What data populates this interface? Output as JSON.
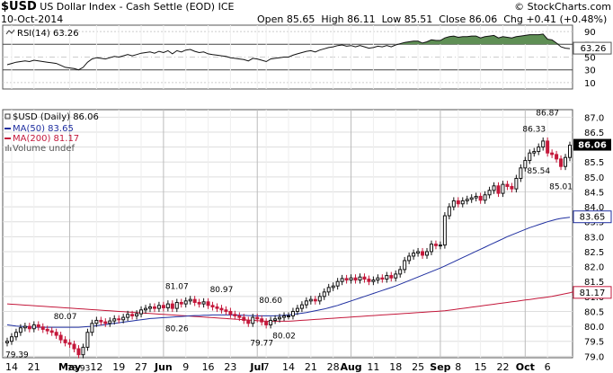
{
  "header": {
    "symbol": "$USD",
    "name": "US Dollar Index - Cash Settle (EOD)",
    "exchange": "ICE",
    "date": "10-Oct-2014",
    "ohlc": "Open 85.65  High 86.11  Low 85.51  Close 86.06  Chg +0.41 (+0.48%)",
    "watermark": "© StockCharts.com"
  },
  "rsi_panel": {
    "label": "RSI(14) 63.26",
    "current_badge": "63.26",
    "ticks": [
      "90",
      "70",
      "50",
      "30",
      "10"
    ],
    "upper_band": 70,
    "lower_band": 30,
    "mid_line": 50
  },
  "price_panel": {
    "label": "$USD (Daily) 86.06",
    "legend": [
      {
        "text": "MA(50) 83.65",
        "color": "#1f2fa0"
      },
      {
        "text": "MA(200) 81.17",
        "color": "#c4183b"
      },
      {
        "text": "Volume undef",
        "color": "#888888"
      }
    ],
    "close_badge": "86.06",
    "ma50_badge": "83.65",
    "ma200_badge": "81.17",
    "y_ticks": [
      "87.0",
      "86.5",
      "86.0",
      "85.5",
      "85.0",
      "84.5",
      "84.0",
      "83.5",
      "83.0",
      "82.5",
      "82.0",
      "81.5",
      "81.0",
      "80.5",
      "80.0",
      "79.5",
      "79.0"
    ],
    "x_ticks": [
      "14",
      "21",
      "May",
      "12",
      "19",
      "27",
      "Jun",
      "9",
      "16",
      "23",
      "Jul",
      "7",
      "14",
      "21",
      "28",
      "Aug",
      "11",
      "18",
      "25",
      "Sep",
      "8",
      "15",
      "22",
      "Oct",
      "6"
    ],
    "annotations": [
      "80.07",
      "78.93",
      "81.07",
      "80.26",
      "80.97",
      "80.60",
      "79.77",
      "80.02",
      "86.33",
      "86.87",
      "85.54",
      "85.01",
      "79.39"
    ]
  },
  "colors": {
    "up": "#111111",
    "down": "#c4183b",
    "ma50": "#1f2fa0",
    "ma200": "#c4183b",
    "rsi_fill": "#5f8f55",
    "badge_close": "#000000"
  },
  "chart_data": {
    "type": "candlestick",
    "title": "$USD (Daily) 86.06",
    "ylim": [
      79.0,
      87.2
    ],
    "rsi_ylim": [
      0,
      100
    ],
    "x": [
      "Apr 11",
      "Apr 14",
      "Apr 15",
      "Apr 16",
      "Apr 17",
      "Apr 21",
      "Apr 22",
      "Apr 23",
      "Apr 24",
      "Apr 25",
      "Apr 28",
      "Apr 29",
      "Apr 30",
      "May 1",
      "May 2",
      "May 5",
      "May 6",
      "May 7",
      "May 8",
      "May 9",
      "May 12",
      "May 13",
      "May 14",
      "May 15",
      "May 16",
      "May 19",
      "May 20",
      "May 21",
      "May 22",
      "May 23",
      "May 27",
      "May 28",
      "May 29",
      "May 30",
      "Jun 2",
      "Jun 3",
      "Jun 4",
      "Jun 5",
      "Jun 6",
      "Jun 9",
      "Jun 10",
      "Jun 11",
      "Jun 12",
      "Jun 13",
      "Jun 16",
      "Jun 17",
      "Jun 18",
      "Jun 19",
      "Jun 20",
      "Jun 23",
      "Jun 24",
      "Jun 25",
      "Jun 26",
      "Jun 27",
      "Jun 30",
      "Jul 1",
      "Jul 2",
      "Jul 3",
      "Jul 7",
      "Jul 8",
      "Jul 9",
      "Jul 10",
      "Jul 11",
      "Jul 14",
      "Jul 15",
      "Jul 16",
      "Jul 17",
      "Jul 18",
      "Jul 21",
      "Jul 22",
      "Jul 23",
      "Jul 24",
      "Jul 25",
      "Jul 28",
      "Jul 29",
      "Jul 30",
      "Jul 31",
      "Aug 1",
      "Aug 4",
      "Aug 5",
      "Aug 6",
      "Aug 7",
      "Aug 8",
      "Aug 11",
      "Aug 12",
      "Aug 13",
      "Aug 14",
      "Aug 15",
      "Aug 18",
      "Aug 19",
      "Aug 20",
      "Aug 21",
      "Aug 22",
      "Aug 25",
      "Aug 26",
      "Aug 27",
      "Aug 28",
      "Aug 29",
      "Sep 2",
      "Sep 3",
      "Sep 4",
      "Sep 5",
      "Sep 8",
      "Sep 9",
      "Sep 10",
      "Sep 11",
      "Sep 12",
      "Sep 15",
      "Sep 16",
      "Sep 17",
      "Sep 18",
      "Sep 19",
      "Sep 22",
      "Sep 23",
      "Sep 24",
      "Sep 25",
      "Sep 26",
      "Sep 29",
      "Sep 30",
      "Oct 1",
      "Oct 2",
      "Oct 3",
      "Oct 6",
      "Oct 7",
      "Oct 8",
      "Oct 9",
      "Oct 10"
    ],
    "close": [
      79.5,
      79.65,
      79.8,
      79.95,
      80.0,
      79.92,
      80.05,
      79.98,
      79.9,
      79.85,
      79.8,
      79.7,
      79.55,
      79.45,
      79.4,
      79.25,
      79.05,
      79.3,
      79.8,
      80.1,
      80.2,
      80.15,
      80.1,
      80.18,
      80.25,
      80.22,
      80.3,
      80.4,
      80.35,
      80.42,
      80.55,
      80.6,
      80.65,
      80.6,
      80.7,
      80.62,
      80.75,
      80.6,
      80.8,
      80.75,
      80.85,
      80.9,
      80.8,
      80.75,
      80.82,
      80.7,
      80.65,
      80.6,
      80.55,
      80.5,
      80.4,
      80.35,
      80.3,
      80.2,
      80.1,
      80.3,
      80.25,
      80.15,
      80.05,
      80.2,
      80.25,
      80.3,
      80.35,
      80.35,
      80.5,
      80.6,
      80.72,
      80.85,
      80.9,
      80.85,
      81.0,
      81.15,
      81.3,
      81.35,
      81.5,
      81.6,
      81.55,
      81.62,
      81.55,
      81.65,
      81.58,
      81.5,
      81.55,
      81.62,
      81.58,
      81.7,
      81.62,
      81.75,
      81.9,
      82.2,
      82.35,
      82.45,
      82.5,
      82.38,
      82.5,
      82.75,
      82.7,
      82.72,
      83.7,
      84.0,
      84.2,
      84.1,
      84.2,
      84.25,
      84.3,
      84.35,
      84.22,
      84.4,
      84.55,
      84.7,
      84.45,
      84.75,
      84.68,
      84.6,
      84.95,
      85.3,
      85.55,
      85.8,
      85.85,
      86.0,
      86.2,
      85.8,
      85.75,
      85.6,
      85.35,
      85.65,
      86.06
    ],
    "rsi": [
      38,
      40,
      42,
      43,
      44,
      43,
      45,
      44,
      43,
      42,
      41,
      40,
      37,
      34,
      33,
      32,
      30,
      34,
      42,
      47,
      49,
      48,
      47,
      49,
      51,
      50,
      52,
      54,
      52,
      54,
      56,
      57,
      58,
      56,
      59,
      57,
      60,
      55,
      60,
      58,
      61,
      62,
      59,
      57,
      58,
      55,
      54,
      53,
      52,
      51,
      49,
      48,
      47,
      46,
      44,
      48,
      47,
      45,
      43,
      47,
      48,
      49,
      50,
      50,
      53,
      55,
      57,
      59,
      60,
      58,
      61,
      63,
      65,
      66,
      68,
      69,
      67,
      68,
      66,
      68,
      66,
      64,
      65,
      67,
      66,
      68,
      66,
      69,
      71,
      73,
      74,
      75,
      75,
      72,
      74,
      77,
      76,
      76,
      80,
      82,
      83,
      81,
      82,
      82,
      83,
      83,
      80,
      82,
      83,
      84,
      80,
      82,
      81,
      80,
      82,
      83,
      84,
      85,
      85,
      85,
      86,
      78,
      77,
      72,
      66,
      64,
      63.26
    ],
    "ma50": [
      80.05,
      80.03,
      80.01,
      80.0,
      79.99,
      79.98,
      79.97,
      79.97,
      79.97,
      79.97,
      79.97,
      79.97,
      79.97,
      79.97,
      79.97,
      79.97,
      79.97,
      79.98,
      79.99,
      80.0,
      80.02,
      80.04,
      80.06,
      80.08,
      80.1,
      80.12,
      80.14,
      80.16,
      80.18,
      80.2,
      80.22,
      80.24,
      80.26,
      80.27,
      80.28,
      80.29,
      80.3,
      80.31,
      80.32,
      80.33,
      80.34,
      80.35,
      80.36,
      80.36,
      80.37,
      80.37,
      80.38,
      80.38,
      80.38,
      80.38,
      80.38,
      80.38,
      80.37,
      80.37,
      80.36,
      80.36,
      80.35,
      80.35,
      80.35,
      80.35,
      80.35,
      80.36,
      80.37,
      80.38,
      80.4,
      80.42,
      80.44,
      80.46,
      80.49,
      80.52,
      80.55,
      80.58,
      80.62,
      80.66,
      80.7,
      80.75,
      80.8,
      80.85,
      80.9,
      80.95,
      81.0,
      81.05,
      81.1,
      81.15,
      81.2,
      81.25,
      81.3,
      81.35,
      81.41,
      81.47,
      81.53,
      81.59,
      81.65,
      81.71,
      81.77,
      81.83,
      81.89,
      81.95,
      82.02,
      82.09,
      82.16,
      82.23,
      82.3,
      82.37,
      82.44,
      82.51,
      82.58,
      82.65,
      82.72,
      82.79,
      82.86,
      82.93,
      83.0,
      83.06,
      83.12,
      83.18,
      83.24,
      83.3,
      83.35,
      83.4,
      83.45,
      83.5,
      83.54,
      83.58,
      83.61,
      83.63,
      83.65
    ],
    "ma200": [
      80.75,
      80.74,
      80.73,
      80.72,
      80.71,
      80.7,
      80.69,
      80.68,
      80.67,
      80.66,
      80.65,
      80.64,
      80.63,
      80.62,
      80.61,
      80.6,
      80.59,
      80.58,
      80.57,
      80.56,
      80.55,
      80.54,
      80.53,
      80.52,
      80.51,
      80.5,
      80.49,
      80.48,
      80.47,
      80.46,
      80.45,
      80.44,
      80.43,
      80.42,
      80.41,
      80.4,
      80.39,
      80.38,
      80.37,
      80.36,
      80.35,
      80.34,
      80.33,
      80.32,
      80.31,
      80.3,
      80.29,
      80.28,
      80.27,
      80.26,
      80.25,
      80.24,
      80.23,
      80.22,
      80.21,
      80.2,
      80.19,
      80.18,
      80.17,
      80.17,
      80.17,
      80.17,
      80.17,
      80.17,
      80.18,
      80.19,
      80.2,
      80.21,
      80.22,
      80.23,
      80.24,
      80.25,
      80.26,
      80.27,
      80.28,
      80.29,
      80.3,
      80.31,
      80.32,
      80.33,
      80.34,
      80.35,
      80.36,
      80.37,
      80.38,
      80.39,
      80.4,
      80.41,
      80.42,
      80.43,
      80.44,
      80.45,
      80.46,
      80.47,
      80.48,
      80.49,
      80.5,
      80.51,
      80.52,
      80.54,
      80.56,
      80.58,
      80.6,
      80.62,
      80.64,
      80.66,
      80.68,
      80.7,
      80.72,
      80.74,
      80.76,
      80.78,
      80.8,
      80.82,
      80.84,
      80.86,
      80.88,
      80.9,
      80.92,
      80.94,
      80.96,
      80.98,
      81.0,
      81.03,
      81.06,
      81.09,
      81.12,
      81.17
    ]
  }
}
